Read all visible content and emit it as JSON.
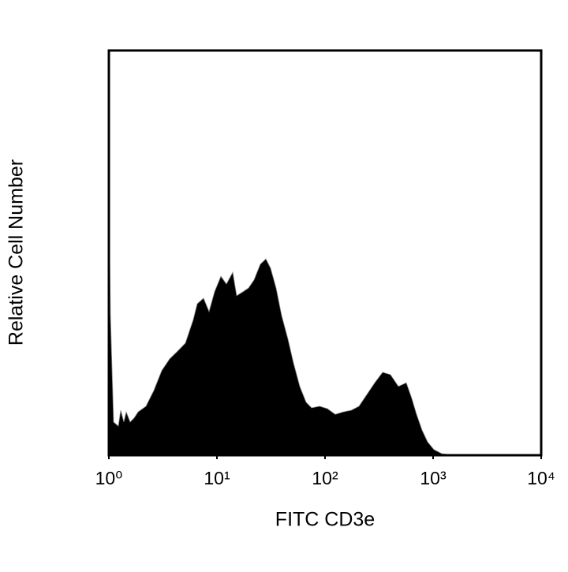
{
  "chart_data": {
    "type": "area",
    "xlabel": "FITC CD3e",
    "ylabel": "Relative Cell Number",
    "xscale": "log",
    "xlim": [
      1,
      10000
    ],
    "xticks": [
      {
        "value": 1,
        "label": "10⁰"
      },
      {
        "value": 10,
        "label": "10¹"
      },
      {
        "value": 100,
        "label": "10²"
      },
      {
        "value": 1000,
        "label": "10³"
      },
      {
        "value": 10000,
        "label": "10⁴"
      }
    ],
    "ylim": [
      0,
      100
    ],
    "color": "#000000",
    "x": [
      1,
      1.034,
      1.106,
      1.223,
      1.287,
      1.376,
      1.447,
      1.574,
      1.712,
      1.863,
      2.203,
      2.607,
      3.084,
      3.648,
      4.315,
      5.105,
      6.039,
      6.569,
      7.513,
      8.453,
      9.508,
      10.88,
      12.24,
      14.0,
      15.22,
      17.42,
      19.59,
      22.03,
      25.2,
      28.36,
      31.36,
      35.27,
      39.67,
      45.39,
      51.05,
      58.41,
      66.81,
      75.15,
      88.88,
      105.2,
      124.4,
      147.2,
      174.1,
      206.0,
      243.8,
      288.4,
      341.2,
      403.5,
      477.4,
      564.8,
      635.4,
      702.7,
      790.4,
      888.9,
      1017,
      1203,
      1548,
      10000
    ],
    "values": [
      63.7,
      34.5,
      8.2,
      7.2,
      11.1,
      8.2,
      10.7,
      8.2,
      9.2,
      10.7,
      12.1,
      16.0,
      20.9,
      23.8,
      25.7,
      27.7,
      33.5,
      37.4,
      38.8,
      35.5,
      40.4,
      44.2,
      42.3,
      45.2,
      39.4,
      40.4,
      41.3,
      43.3,
      47.2,
      48.5,
      46.2,
      41.3,
      34.5,
      28.7,
      22.8,
      17.0,
      13.1,
      11.7,
      12.1,
      11.5,
      10.1,
      10.7,
      11.1,
      12.1,
      15.0,
      17.9,
      20.5,
      19.9,
      17.0,
      17.9,
      14.0,
      10.1,
      6.2,
      3.3,
      1.4,
      0.4,
      0,
      0
    ]
  }
}
